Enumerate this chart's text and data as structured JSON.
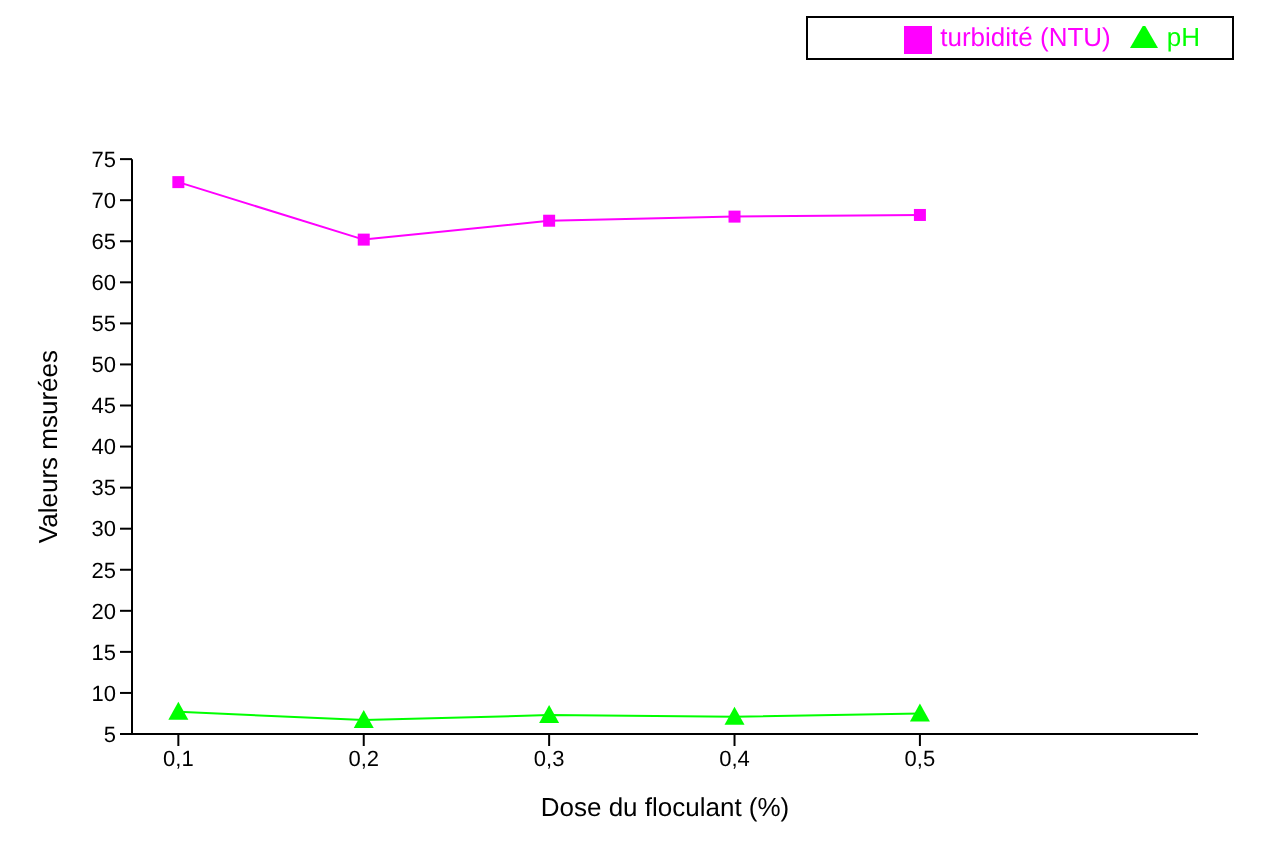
{
  "chart_data": {
    "type": "line",
    "xlabel": "Dose du floculant (%)",
    "ylabel": "Valeurs msurées",
    "x": [
      0.1,
      0.2,
      0.3,
      0.4,
      0.5
    ],
    "series": [
      {
        "name": "turbidité (NTU)",
        "color": "#ff00ff",
        "marker": "square",
        "values": [
          72.2,
          65.2,
          67.5,
          68.0,
          68.2
        ]
      },
      {
        "name": "pH",
        "color": "#00ff00",
        "marker": "triangle",
        "values": [
          7.7,
          6.7,
          7.3,
          7.1,
          7.5
        ]
      }
    ],
    "xlim": [
      0.075,
      0.65
    ],
    "xticks": [
      {
        "value": 0.1,
        "label": "0,1"
      },
      {
        "value": 0.2,
        "label": "0,2"
      },
      {
        "value": 0.3,
        "label": "0,3"
      },
      {
        "value": 0.4,
        "label": "0,4"
      },
      {
        "value": 0.5,
        "label": "0,5"
      }
    ],
    "ylim": [
      5,
      75
    ],
    "yticks": [
      5,
      10,
      15,
      20,
      25,
      30,
      35,
      40,
      45,
      50,
      55,
      60,
      65,
      70,
      75
    ],
    "grid": false,
    "legend": "top right",
    "line_style": "solid"
  }
}
